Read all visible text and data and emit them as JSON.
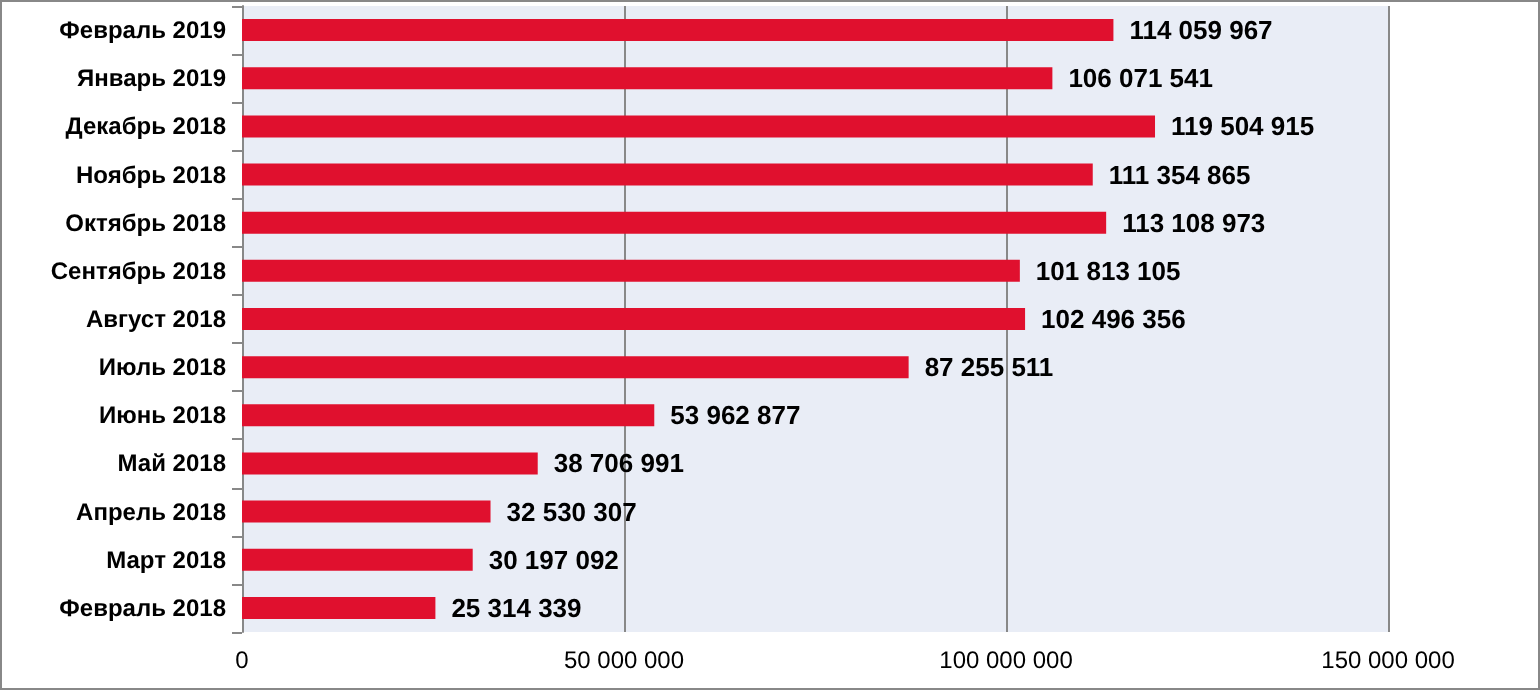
{
  "chart_data": {
    "type": "bar",
    "orientation": "horizontal",
    "categories": [
      "Февраль 2019",
      "Январь 2019",
      "Декабрь 2018",
      "Ноябрь 2018",
      "Октябрь 2018",
      "Сентябрь 2018",
      "Август 2018",
      "Июль 2018",
      "Июнь 2018",
      "Май 2018",
      "Апрель 2018",
      "Март 2018",
      "Февраль 2018"
    ],
    "values": [
      114059967,
      106071541,
      119504915,
      111354865,
      113108973,
      101813105,
      102496356,
      87255511,
      53962877,
      38706991,
      32530307,
      30197092,
      25314339
    ],
    "value_labels": [
      "114 059 967",
      "106 071 541",
      "119 504 915",
      "111 354 865",
      "113 108 973",
      "101 813 105",
      "102 496 356",
      "87 255 511",
      "53 962 877",
      "38 706 991",
      "32 530 307",
      "30 197 092",
      "25 314 339"
    ],
    "color": "#e0102e",
    "xlim": [
      0,
      150000000
    ],
    "xticks": [
      0,
      {
        "value": 50000000,
        "label": "50 000 000"
      },
      {
        "value": 100000000,
        "label": "100 000 000"
      },
      {
        "value": 150000000,
        "label": "150 000 000"
      }
    ],
    "grid": "x"
  }
}
